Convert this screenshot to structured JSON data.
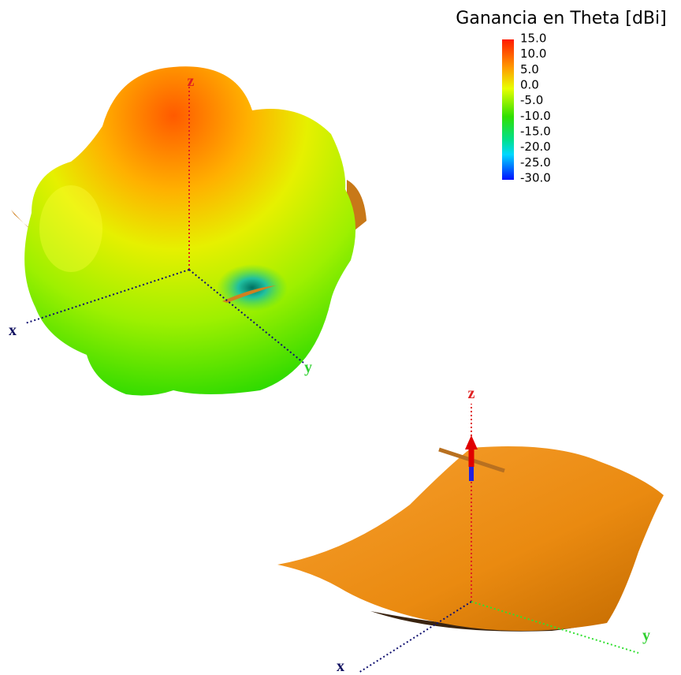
{
  "colorbar": {
    "title": "Ganancia en Theta [dBi]",
    "ticks": [
      "15.0",
      "10.0",
      "5.0",
      "0.0",
      "-5.0",
      "-10.0",
      "-15.0",
      "-20.0",
      "-25.0",
      "-30.0"
    ]
  },
  "pattern_view": {
    "axis_labels": {
      "x": "x",
      "y": "y",
      "z": "z"
    }
  },
  "antenna_view": {
    "axis_labels": {
      "x": "x",
      "y": "y",
      "z": "z"
    }
  }
}
